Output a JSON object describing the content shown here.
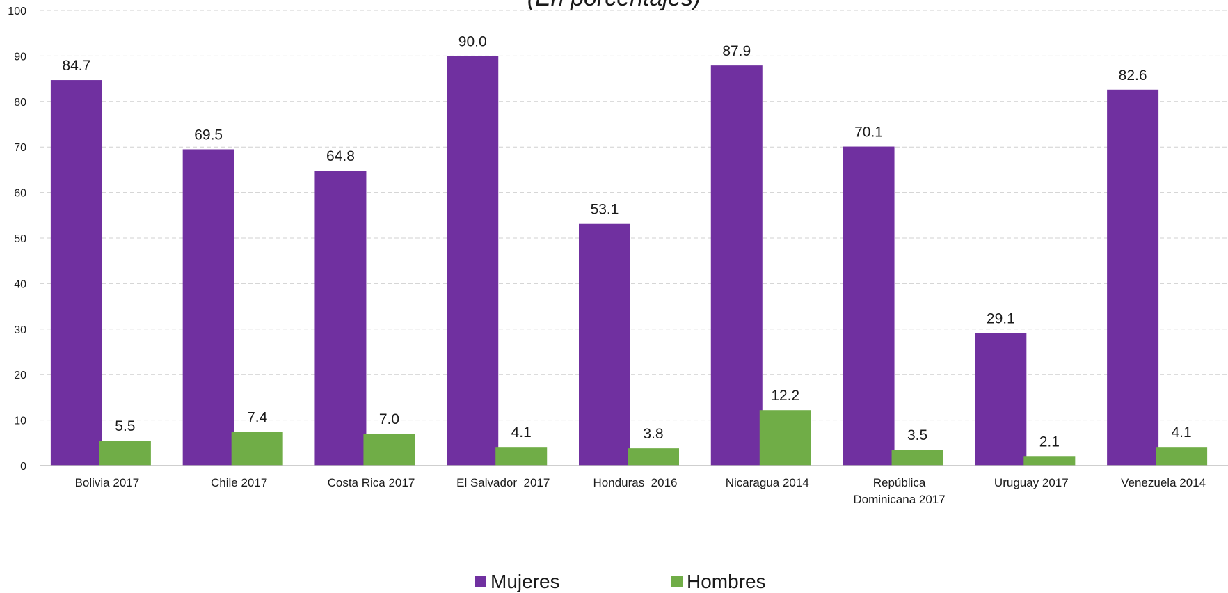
{
  "chart_data": {
    "type": "bar",
    "subtitle": "(En porcentajes)",
    "categories": [
      "Bolivia 2017",
      "Chile 2017",
      "Costa Rica 2017",
      "El Salvador  2017",
      "Honduras  2016",
      "Nicaragua 2014",
      "República Dominicana 2017",
      "Uruguay 2017",
      "Venezuela 2014"
    ],
    "category_lines": [
      [
        "Bolivia 2017"
      ],
      [
        "Chile 2017"
      ],
      [
        "Costa Rica 2017"
      ],
      [
        "El Salvador  2017"
      ],
      [
        "Honduras  2016"
      ],
      [
        "Nicaragua 2014"
      ],
      [
        "República",
        "Dominicana 2017"
      ],
      [
        "Uruguay 2017"
      ],
      [
        "Venezuela 2014"
      ]
    ],
    "series": [
      {
        "name": "Mujeres",
        "color": "#7030a0",
        "values": [
          84.7,
          69.5,
          64.8,
          90.0,
          53.1,
          87.9,
          70.1,
          29.1,
          82.6
        ]
      },
      {
        "name": "Hombres",
        "color": "#70ad47",
        "values": [
          5.5,
          7.4,
          7.0,
          4.1,
          3.8,
          12.2,
          3.5,
          2.1,
          4.1
        ]
      }
    ],
    "ylim": [
      0,
      100
    ],
    "yticks": [
      0,
      10,
      20,
      30,
      40,
      50,
      60,
      70,
      80,
      90,
      100
    ],
    "grid": true,
    "legend_position": "bottom",
    "xlabel": "",
    "ylabel": ""
  }
}
